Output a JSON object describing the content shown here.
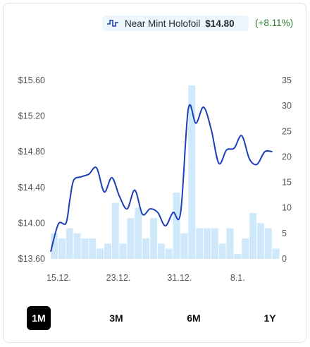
{
  "legend": {
    "label": "Near Mint Holofoil",
    "price": "$14.80",
    "change": "(+8.11%)",
    "icon": "step-line-icon"
  },
  "range_buttons": [
    "1M",
    "3M",
    "6M",
    "1Y"
  ],
  "active_range": "1M",
  "colors": {
    "line": "#1d3fb5",
    "bars": "#cfe9fb",
    "active_button_bg": "#000000",
    "change_positive": "#2e7d32"
  },
  "chart_data": {
    "type": "line",
    "x_ticks": [
      "15.12.",
      "23.12.",
      "31.12.",
      "8.1."
    ],
    "y_left": {
      "ticks": [
        "$15.60",
        "$15.20",
        "$14.80",
        "$14.40",
        "$14.00",
        "$13.60"
      ],
      "range": [
        13.6,
        15.6
      ]
    },
    "y_right": {
      "ticks": [
        "35",
        "30",
        "25",
        "20",
        "15",
        "10",
        "5",
        "0"
      ],
      "range": [
        0,
        35
      ]
    },
    "line": {
      "points": [
        [
          0,
          13.68
        ],
        [
          1,
          13.99
        ],
        [
          2,
          14.0
        ],
        [
          2.5,
          14.26
        ],
        [
          3,
          14.48
        ],
        [
          4,
          14.52
        ],
        [
          5,
          14.55
        ],
        [
          6,
          14.62
        ],
        [
          7,
          14.35
        ],
        [
          8,
          14.51
        ],
        [
          9,
          14.3
        ],
        [
          10,
          14.16
        ],
        [
          11,
          14.37
        ],
        [
          12,
          14.1
        ],
        [
          13,
          14.16
        ],
        [
          14,
          14.12
        ],
        [
          15,
          13.97
        ],
        [
          16,
          14.12
        ],
        [
          17,
          14.12
        ],
        [
          18,
          15.28
        ],
        [
          19,
          15.12
        ],
        [
          20,
          15.3
        ],
        [
          21,
          15.05
        ],
        [
          22,
          14.67
        ],
        [
          23,
          14.82
        ],
        [
          24,
          14.84
        ],
        [
          25,
          14.98
        ],
        [
          26,
          14.72
        ],
        [
          27,
          14.66
        ],
        [
          28,
          14.8
        ],
        [
          29,
          14.8
        ]
      ]
    },
    "bars": {
      "x": [
        0,
        1,
        2,
        3,
        4,
        5,
        6,
        7,
        8,
        9,
        10,
        11,
        12,
        13,
        14,
        15,
        16,
        17,
        18,
        19,
        20,
        21,
        22,
        23,
        24,
        25,
        26,
        27,
        28,
        29
      ],
      "values": [
        5,
        4,
        6,
        5,
        4,
        4,
        2,
        3,
        11,
        3,
        8,
        10,
        4,
        8,
        3,
        2,
        13,
        5,
        34,
        6,
        6,
        6,
        3,
        6,
        1,
        4,
        9,
        7,
        6,
        2
      ]
    },
    "x_tick_positions": [
      0.5,
      8.3,
      16.3,
      23.9
    ],
    "x_range": [
      0,
      29.5
    ]
  }
}
